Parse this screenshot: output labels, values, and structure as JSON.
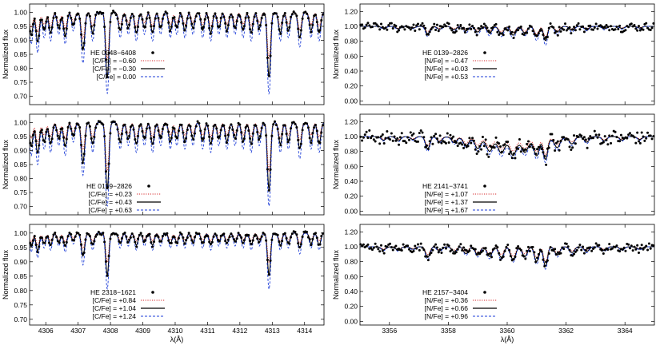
{
  "chart_data": [
    {
      "type": "line",
      "panel": "left-top",
      "ylabel": "Normalized flux",
      "xlabel": "",
      "xlim": [
        4305.5,
        4314.6
      ],
      "ylim": [
        0.67,
        1.03
      ],
      "xticks": [
        4306,
        4307,
        4308,
        4309,
        4310,
        4311,
        4312,
        4313,
        4314
      ],
      "yticks": [
        0.7,
        0.75,
        0.8,
        0.85,
        0.9,
        0.95,
        1.0
      ],
      "ytick_labels": [
        "0.70",
        "0.75",
        "0.80",
        "0.85",
        "0.90",
        "0.95",
        "1.00"
      ],
      "depth_scale": 1.0,
      "legend_position": "center-left",
      "star": "HE 0048−6408",
      "series": [
        {
          "name": "[C/Fe] = −0.60",
          "style": "dotted",
          "color": "#d62728",
          "strength": 0.65
        },
        {
          "name": "[C/Fe] = −0.30",
          "style": "solid",
          "color": "#000000",
          "strength": 1.0
        },
        {
          "name": "[C/Fe] =  0.00",
          "style": "dashed",
          "color": "#1f3fd8",
          "strength": 1.45
        }
      ]
    },
    {
      "type": "line",
      "panel": "left-middle",
      "ylabel": "Normalized flux",
      "xlabel": "",
      "xlim": [
        4305.5,
        4314.6
      ],
      "ylim": [
        0.67,
        1.03
      ],
      "xticks": [
        4306,
        4307,
        4308,
        4309,
        4310,
        4311,
        4312,
        4313,
        4314
      ],
      "yticks": [
        0.7,
        0.75,
        0.8,
        0.85,
        0.9,
        0.95,
        1.0
      ],
      "ytick_labels": [
        "0.70",
        "0.75",
        "0.80",
        "0.85",
        "0.90",
        "0.95",
        "1.00"
      ],
      "depth_scale": 1.05,
      "legend_position": "bottom-center",
      "star": "HE 0139−2826",
      "series": [
        {
          "name": "[C/Fe] = +0.23",
          "style": "dotted",
          "color": "#d62728",
          "strength": 0.65
        },
        {
          "name": "[C/Fe] = +0.43",
          "style": "solid",
          "color": "#000000",
          "strength": 1.0
        },
        {
          "name": "[C/Fe] = +0.63",
          "style": "dashed",
          "color": "#1f3fd8",
          "strength": 1.45
        }
      ]
    },
    {
      "type": "line",
      "panel": "left-bottom",
      "ylabel": "Normalized flux",
      "xlabel": "λ(Å)",
      "xlim": [
        4305.5,
        4314.6
      ],
      "ylim": [
        0.68,
        1.03
      ],
      "xticks": [
        4306,
        4307,
        4308,
        4309,
        4310,
        4311,
        4312,
        4313,
        4314
      ],
      "xtick_labels": [
        "4306",
        "4307",
        "4308",
        "4309",
        "4310",
        "4311",
        "4312",
        "4313",
        "4314"
      ],
      "yticks": [
        0.7,
        0.75,
        0.8,
        0.85,
        0.9,
        0.95,
        1.0
      ],
      "ytick_labels": [
        "0.70",
        "0.75",
        "0.80",
        "0.85",
        "0.90",
        "0.95",
        "1.00"
      ],
      "depth_scale": 0.55,
      "legend_position": "bottom-center",
      "star": "HE 2318−1621",
      "series": [
        {
          "name": "[C/Fe] = +0.84",
          "style": "dotted",
          "color": "#d62728",
          "strength": 0.65
        },
        {
          "name": "[C/Fe] = +1.04",
          "style": "solid",
          "color": "#000000",
          "strength": 1.0
        },
        {
          "name": "[C/Fe] = +1.24",
          "style": "dashed",
          "color": "#1f3fd8",
          "strength": 1.45
        }
      ]
    },
    {
      "type": "line",
      "panel": "right-top",
      "ylabel": "Normalized flux",
      "xlabel": "",
      "xlim": [
        3355.0,
        3365.0
      ],
      "ylim": [
        -0.05,
        1.3
      ],
      "xticks": [
        3356,
        3358,
        3360,
        3362,
        3364
      ],
      "yticks": [
        0.0,
        0.2,
        0.4,
        0.6,
        0.8,
        1.0,
        1.2
      ],
      "ytick_labels": [
        "0.00",
        "0.20",
        "0.40",
        "0.60",
        "0.80",
        "1.00",
        "1.20"
      ],
      "depth_scale": 0.55,
      "legend_position": "center-right",
      "star": "HE 0139−2826",
      "series": [
        {
          "name": "[N/Fe] = −0.47",
          "style": "dotted",
          "color": "#d62728",
          "strength": 0.7
        },
        {
          "name": "[N/Fe] = +0.03",
          "style": "solid",
          "color": "#000000",
          "strength": 1.0
        },
        {
          "name": "[N/Fe] = +0.53",
          "style": "dashed",
          "color": "#1f3fd8",
          "strength": 1.5
        }
      ]
    },
    {
      "type": "line",
      "panel": "right-middle",
      "ylabel": "Normalized flux",
      "xlabel": "",
      "xlim": [
        3355.0,
        3365.0
      ],
      "ylim": [
        -0.05,
        1.3
      ],
      "xticks": [
        3356,
        3358,
        3360,
        3362,
        3364
      ],
      "yticks": [
        0.0,
        0.2,
        0.4,
        0.6,
        0.8,
        1.0,
        1.2
      ],
      "ytick_labels": [
        "0.00",
        "0.20",
        "0.40",
        "0.60",
        "0.80",
        "1.00",
        "1.20"
      ],
      "depth_scale": 1.0,
      "legend_position": "bottom-center",
      "star": "HE 2141−3741",
      "series": [
        {
          "name": "[N/Fe] = +1.07",
          "style": "dotted",
          "color": "#d62728",
          "strength": 0.7
        },
        {
          "name": "[N/Fe] = +1.37",
          "style": "solid",
          "color": "#000000",
          "strength": 1.0
        },
        {
          "name": "[N/Fe] = +1.67",
          "style": "dashed",
          "color": "#1f3fd8",
          "strength": 1.3
        }
      ]
    },
    {
      "type": "line",
      "panel": "right-bottom",
      "ylabel": "Normalized flux",
      "xlabel": "λ(Å)",
      "xlim": [
        3355.0,
        3365.0
      ],
      "ylim": [
        -0.05,
        1.3
      ],
      "xticks": [
        3356,
        3358,
        3360,
        3362,
        3364
      ],
      "xtick_labels": [
        "3356",
        "3358",
        "3360",
        "3362",
        "3364"
      ],
      "yticks": [
        0.0,
        0.2,
        0.4,
        0.6,
        0.8,
        1.0,
        1.2
      ],
      "ytick_labels": [
        "0.00",
        "0.20",
        "0.40",
        "0.60",
        "0.80",
        "1.00",
        "1.20"
      ],
      "depth_scale": 0.85,
      "legend_position": "bottom-center",
      "star": "HE 2157−3404",
      "series": [
        {
          "name": "[N/Fe] = +0.36",
          "style": "dotted",
          "color": "#d62728",
          "strength": 0.7
        },
        {
          "name": "[N/Fe] = +0.66",
          "style": "solid",
          "color": "#000000",
          "strength": 1.0
        },
        {
          "name": "[N/Fe] = +0.96",
          "style": "dashed",
          "color": "#1f3fd8",
          "strength": 1.3
        }
      ]
    }
  ]
}
